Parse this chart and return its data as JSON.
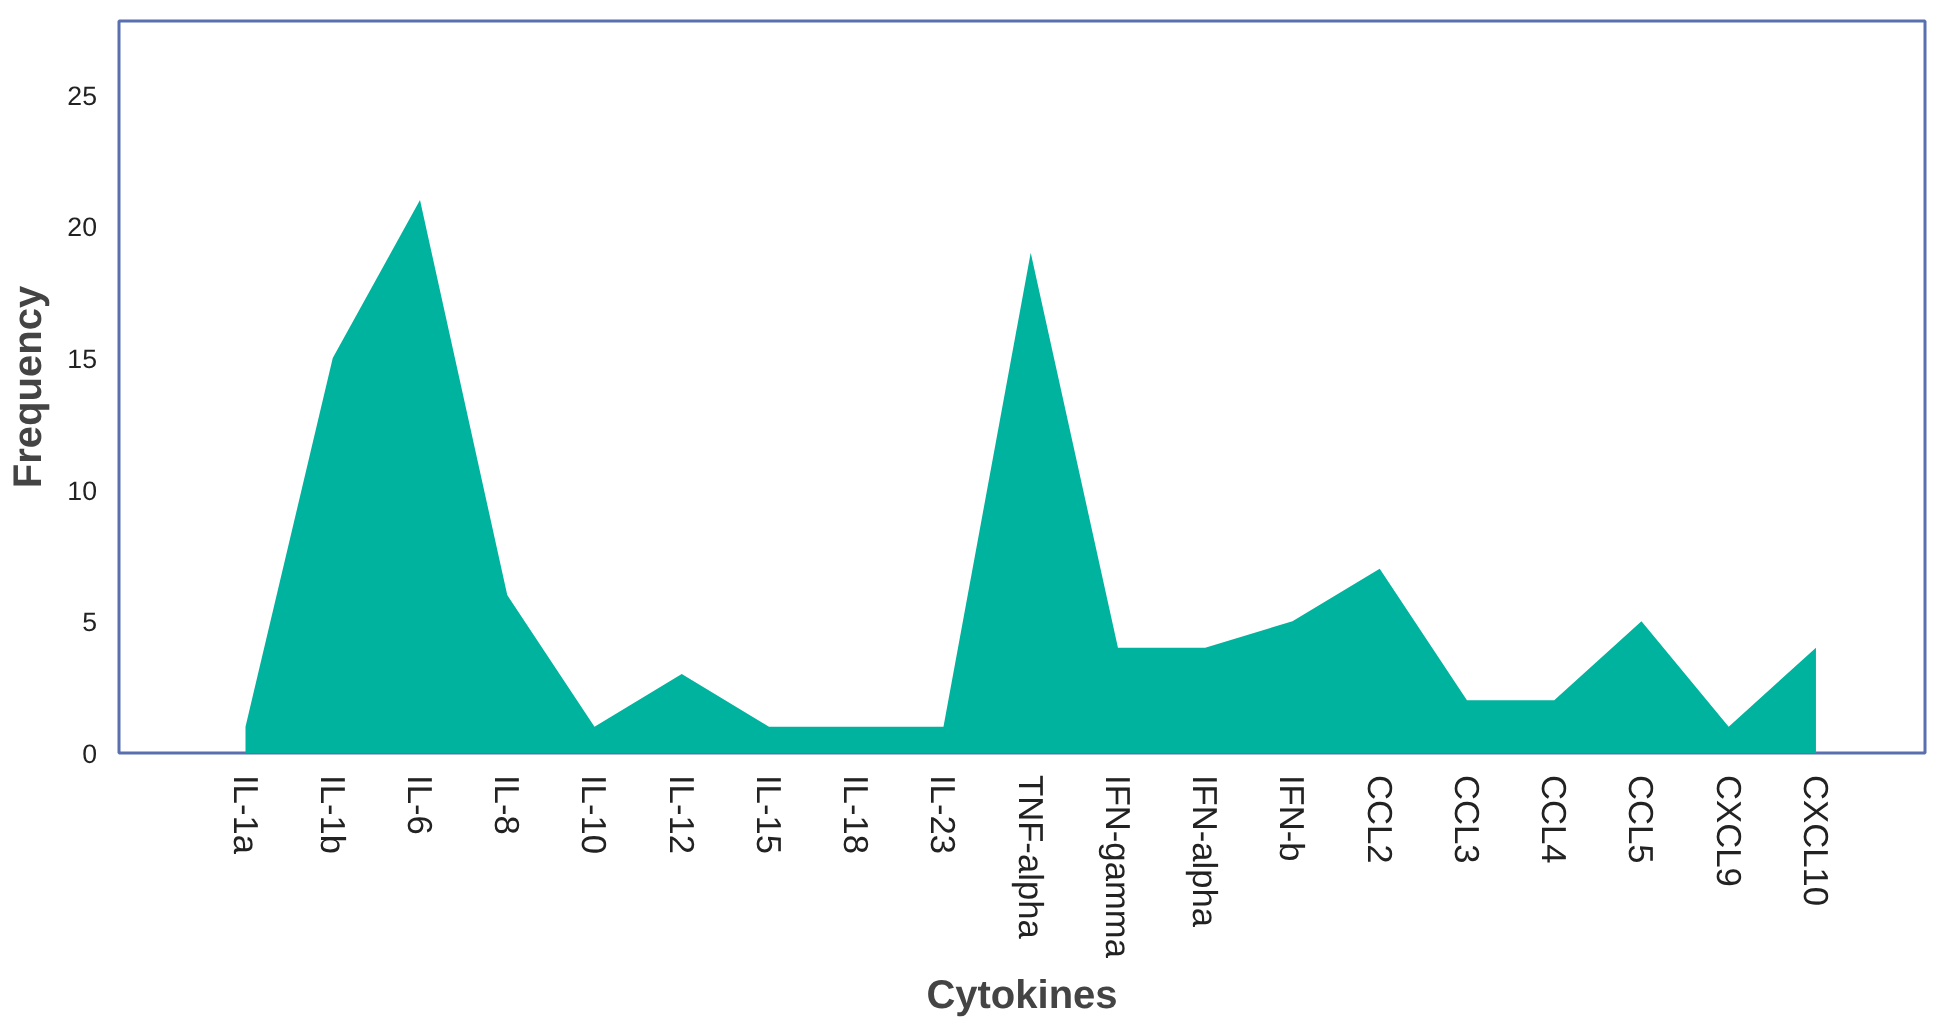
{
  "chart_data": {
    "type": "area",
    "xlabel": "Cytokines",
    "ylabel": "Frequency",
    "categories": [
      "IL-1a",
      "IL-1b",
      "IL-6",
      "IL-8",
      "IL-10",
      "IL-12",
      "IL-15",
      "IL-18",
      "IL-23",
      "TNF-alpha",
      "IFN-gamma",
      "IFN-alpha",
      "IFN-b",
      "CCL2",
      "CCL3",
      "CCL4",
      "CCL5",
      "CXCL9",
      "CXCL10"
    ],
    "series": [
      {
        "color": "#00b39e",
        "values": [
          1,
          15,
          21,
          6,
          1,
          3,
          1,
          1,
          1,
          19,
          4,
          4,
          5,
          7,
          2,
          2,
          5,
          1,
          4
        ]
      }
    ],
    "ylim": [
      0,
      27.8
    ],
    "yticks": [
      0,
      5,
      10,
      15,
      20,
      25
    ],
    "grid": false
  }
}
